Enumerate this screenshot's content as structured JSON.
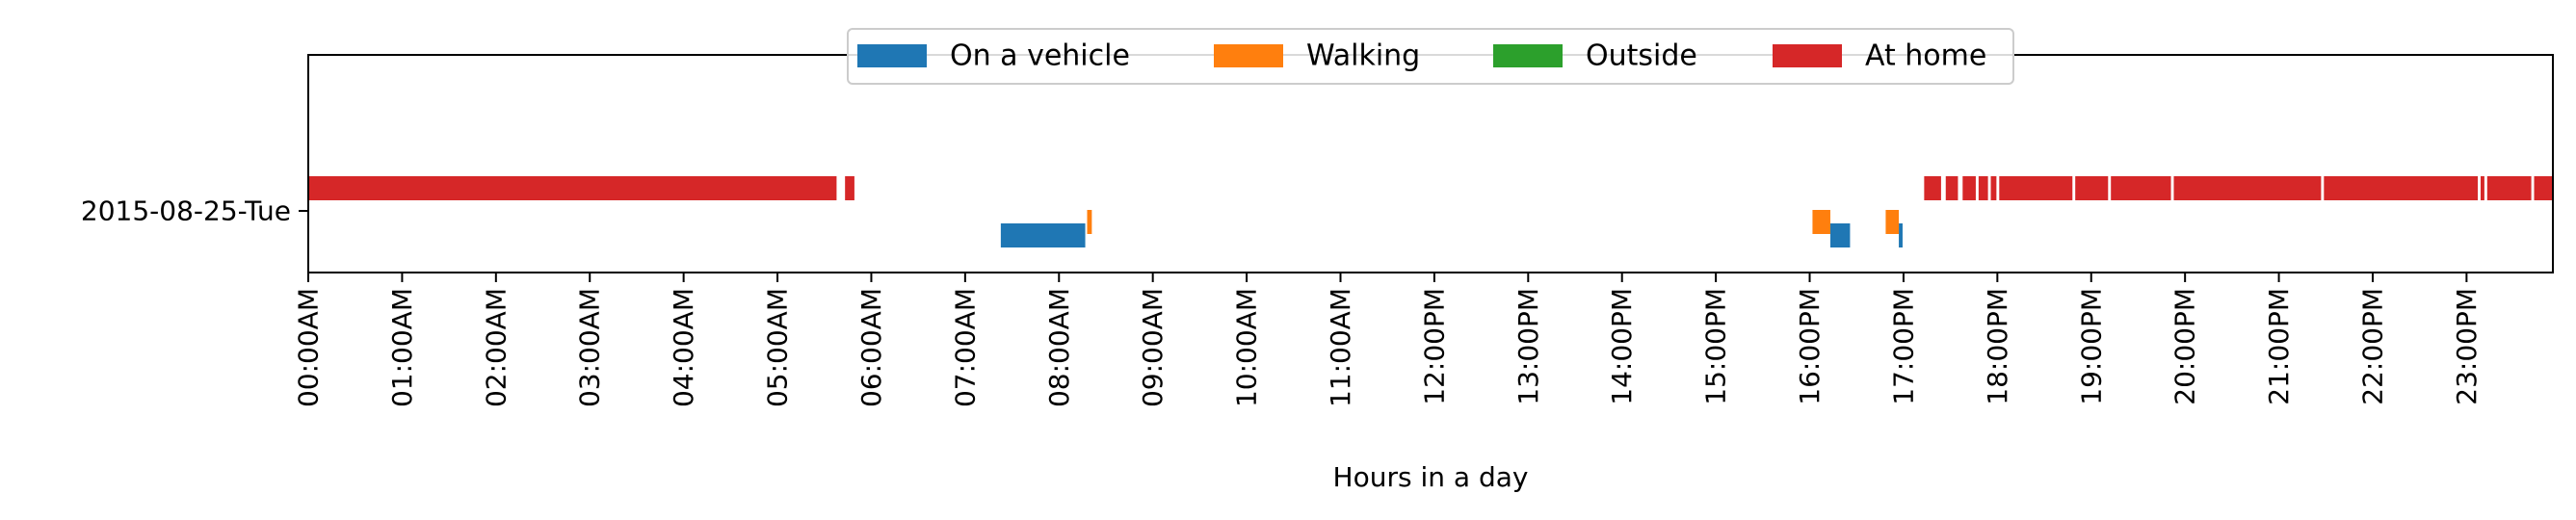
{
  "chart_data": {
    "type": "timeline",
    "xlabel": "Hours in a day",
    "x_unit": "hour of day",
    "xlim": [
      0,
      23.92
    ],
    "row_label": "2015-08-25-Tue",
    "x_tick_labels": [
      "00:00AM",
      "01:00AM",
      "02:00AM",
      "03:00AM",
      "04:00AM",
      "05:00AM",
      "06:00AM",
      "07:00AM",
      "08:00AM",
      "09:00AM",
      "10:00AM",
      "11:00AM",
      "12:00PM",
      "13:00PM",
      "14:00PM",
      "15:00PM",
      "16:00PM",
      "17:00PM",
      "18:00PM",
      "19:00PM",
      "20:00PM",
      "21:00PM",
      "22:00PM",
      "23:00PM"
    ],
    "legend_position": "top-center",
    "series": [
      {
        "name": "On a vehicle",
        "color": "#1f77b4",
        "intervals": [
          [
            7.38,
            8.28
          ],
          [
            16.22,
            16.43
          ],
          [
            16.95,
            16.99
          ]
        ]
      },
      {
        "name": "Walking",
        "color": "#ff7f0e",
        "intervals": [
          [
            8.3,
            8.35
          ],
          [
            16.03,
            16.22
          ],
          [
            16.81,
            16.95
          ]
        ]
      },
      {
        "name": "Outside",
        "color": "#2ca02c",
        "intervals": []
      },
      {
        "name": "At home",
        "color": "#d62728",
        "intervals": [
          [
            0.0,
            5.63
          ],
          [
            5.72,
            5.82
          ],
          [
            17.22,
            17.4
          ],
          [
            17.45,
            17.58
          ],
          [
            17.63,
            17.77
          ],
          [
            17.8,
            17.9
          ],
          [
            17.93,
            17.99
          ],
          [
            18.02,
            18.8
          ],
          [
            18.83,
            19.18
          ],
          [
            19.21,
            19.85
          ],
          [
            19.88,
            21.45
          ],
          [
            21.48,
            23.12
          ],
          [
            23.15,
            23.19
          ],
          [
            23.22,
            23.69
          ],
          [
            23.72,
            23.92
          ]
        ]
      }
    ]
  }
}
